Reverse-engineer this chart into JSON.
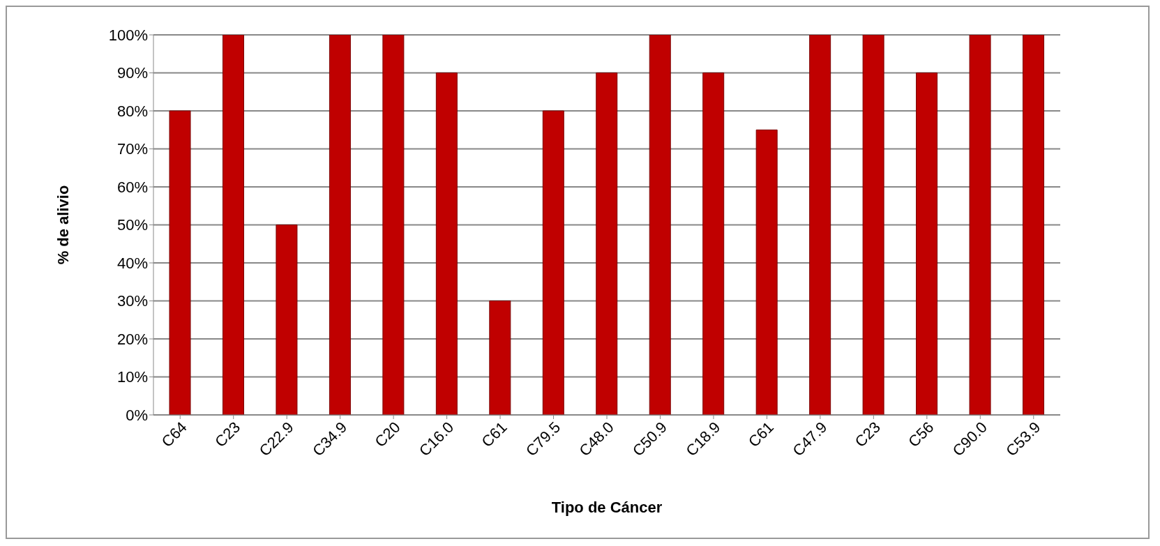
{
  "chart_data": {
    "type": "bar",
    "categories": [
      "C64",
      "C23",
      "C22.9",
      "C34.9",
      "C20",
      "C16.0",
      "C61",
      "C79.5",
      "C48.0",
      "C50.9",
      "C18.9",
      "C61",
      "C47.9",
      "C23",
      "C56",
      "C90.0",
      "C53.9"
    ],
    "values": [
      80,
      100,
      50,
      100,
      100,
      90,
      30,
      80,
      90,
      100,
      90,
      75,
      100,
      100,
      90,
      100,
      100
    ],
    "color": "#c00000",
    "xlabel": "Tipo de Cáncer",
    "ylabel": "% de alivio",
    "ylim": [
      0,
      100
    ],
    "yticks": [
      {
        "value": 0,
        "label": "0%"
      },
      {
        "value": 10,
        "label": "10%"
      },
      {
        "value": 20,
        "label": "20%"
      },
      {
        "value": 30,
        "label": "30%"
      },
      {
        "value": 40,
        "label": "40%"
      },
      {
        "value": 50,
        "label": "50%"
      },
      {
        "value": 60,
        "label": "60%"
      },
      {
        "value": 70,
        "label": "70%"
      },
      {
        "value": 80,
        "label": "80%"
      },
      {
        "value": 90,
        "label": "90%"
      },
      {
        "value": 100,
        "label": "100%"
      }
    ],
    "grid": "y"
  }
}
